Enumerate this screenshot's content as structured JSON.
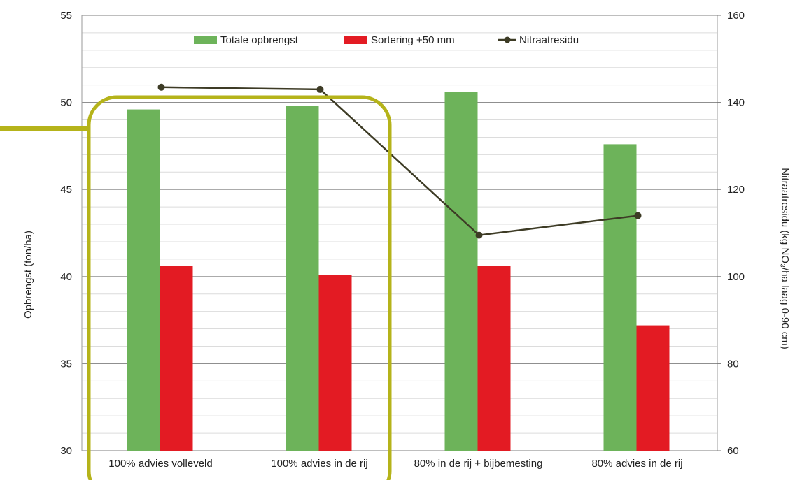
{
  "chart_data": {
    "type": "bar",
    "categories": [
      "100% advies volleveld",
      "100% advies in de rij",
      "80% in de rij + bijbemesting",
      "80% advies in de rij"
    ],
    "series": [
      {
        "name": "Totale opbrengst",
        "type": "bar",
        "axis": "left",
        "color": "#6db35a",
        "values": [
          49.6,
          49.8,
          50.6,
          47.6
        ]
      },
      {
        "name": "Sortering +50 mm",
        "type": "bar",
        "axis": "left",
        "color": "#e31b23",
        "values": [
          40.6,
          40.1,
          40.6,
          37.2
        ]
      },
      {
        "name": "Nitraatresidu",
        "type": "line",
        "axis": "right",
        "color": "#3d3b25",
        "values": [
          143.5,
          143,
          109.5,
          114
        ]
      }
    ],
    "ylabel": "Opbrengst (ton/ha)",
    "ylabel_right": "Nitraatresidu (kg NO₃/ha laag 0-90 cm)",
    "ylim": [
      30,
      55
    ],
    "ylim_right": [
      60,
      160
    ],
    "yticks": [
      30,
      35,
      40,
      45,
      50,
      55
    ],
    "yticks_right": [
      60,
      80,
      100,
      120,
      140,
      160
    ],
    "grid": true,
    "legend_position": "top-center",
    "highlight": {
      "shape": "rounded-rectangle",
      "color": "#b5b31a",
      "covers_categories": [
        0,
        1
      ]
    }
  }
}
